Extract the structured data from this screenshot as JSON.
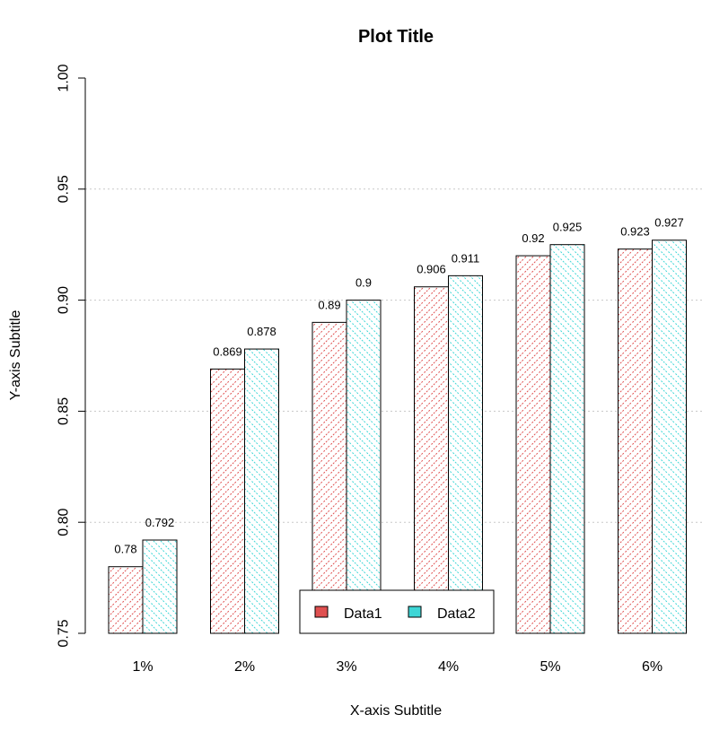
{
  "chart_data": {
    "type": "bar",
    "title": "Plot Title",
    "xlabel": "X-axis Subtitle",
    "ylabel": "Y-axis Subtitle",
    "categories": [
      "1%",
      "2%",
      "3%",
      "4%",
      "5%",
      "6%"
    ],
    "ylim": [
      0.75,
      1.0
    ],
    "yticks": [
      "0.75",
      "0.80",
      "0.85",
      "0.90",
      "0.95",
      "1.00"
    ],
    "grid": "horizontal dotted",
    "legend_position": "bottom-center",
    "bar_style": "hatched",
    "series": [
      {
        "name": "Data1",
        "color": "#df5050",
        "values": [
          0.78,
          0.869,
          0.89,
          0.906,
          0.92,
          0.923
        ],
        "labels": [
          "0.78",
          "0.869",
          "0.89",
          "0.906",
          "0.92",
          "0.923"
        ]
      },
      {
        "name": "Data2",
        "color": "#3ed6d6",
        "values": [
          0.792,
          0.878,
          0.9,
          0.911,
          0.925,
          0.927
        ],
        "labels": [
          "0.792",
          "0.878",
          "0.9",
          "0.911",
          "0.925",
          "0.927"
        ]
      }
    ]
  }
}
